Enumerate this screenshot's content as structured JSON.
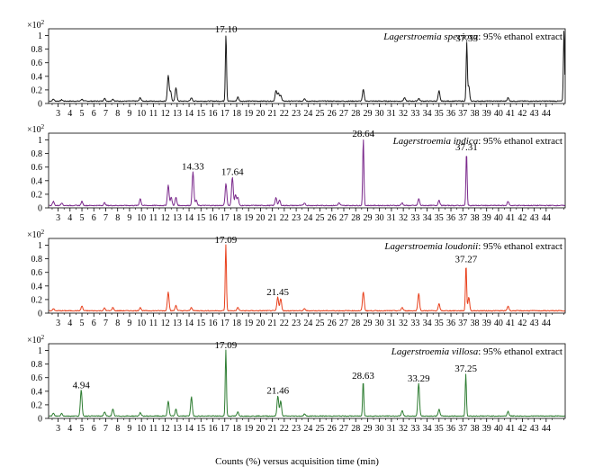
{
  "figure": {
    "xlabel": "Counts (%) versus acquisition time (min)",
    "y_multiplier": "×10",
    "y_multiplier_exp": "2"
  },
  "chart_data": [
    {
      "type": "line",
      "title_species": "Lagerstroemia speciosa",
      "title_suffix": ": 95% ethanol extract",
      "color": "#1a1a1a",
      "xlim": [
        2.2,
        45.6
      ],
      "ylim": [
        0,
        1.1
      ],
      "x_ticks": [
        3,
        4,
        5,
        6,
        7,
        8,
        9,
        10,
        11,
        12,
        13,
        14,
        15,
        16,
        17,
        18,
        19,
        20,
        21,
        22,
        23,
        24,
        25,
        26,
        27,
        28,
        29,
        30,
        31,
        32,
        33,
        34,
        35,
        36,
        37,
        38,
        39,
        40,
        41,
        42,
        43,
        44
      ],
      "y_ticks": [
        0,
        0.2,
        0.4,
        0.6,
        0.8,
        1
      ],
      "y_tick_labels": [
        "0",
        "0.2",
        "0.4",
        "0.6",
        "0.8",
        "1"
      ],
      "peaks": [
        {
          "x": 2.6,
          "y": 0.03
        },
        {
          "x": 3.3,
          "y": 0.02
        },
        {
          "x": 5.0,
          "y": 0.03
        },
        {
          "x": 6.9,
          "y": 0.04
        },
        {
          "x": 7.6,
          "y": 0.03
        },
        {
          "x": 9.9,
          "y": 0.05
        },
        {
          "x": 12.25,
          "y": 0.38
        },
        {
          "x": 12.45,
          "y": 0.14
        },
        {
          "x": 12.9,
          "y": 0.2
        },
        {
          "x": 14.2,
          "y": 0.05
        },
        {
          "x": 17.1,
          "y": 0.98
        },
        {
          "x": 18.1,
          "y": 0.06
        },
        {
          "x": 21.3,
          "y": 0.16
        },
        {
          "x": 21.5,
          "y": 0.12
        },
        {
          "x": 21.7,
          "y": 0.09
        },
        {
          "x": 23.7,
          "y": 0.04
        },
        {
          "x": 28.64,
          "y": 0.17
        },
        {
          "x": 32.1,
          "y": 0.05
        },
        {
          "x": 33.3,
          "y": 0.04
        },
        {
          "x": 35.0,
          "y": 0.15
        },
        {
          "x": 37.33,
          "y": 0.85
        },
        {
          "x": 37.5,
          "y": 0.22
        },
        {
          "x": 40.8,
          "y": 0.05
        },
        {
          "x": 45.5,
          "y": 1.05
        }
      ],
      "labels": [
        {
          "x": 17.1,
          "text": "17.10"
        },
        {
          "x": 37.33,
          "text": "37.33"
        }
      ]
    },
    {
      "type": "line",
      "title_species": "Lagerstroemia indica",
      "title_suffix": ": 95% ethanol extract",
      "color": "#7b2a8c",
      "xlim": [
        2.2,
        45.6
      ],
      "ylim": [
        0,
        1.1
      ],
      "x_ticks": [
        3,
        4,
        5,
        6,
        7,
        8,
        9,
        10,
        11,
        12,
        13,
        14,
        15,
        16,
        17,
        18,
        19,
        20,
        21,
        22,
        23,
        24,
        25,
        26,
        27,
        28,
        29,
        30,
        31,
        32,
        33,
        34,
        35,
        36,
        37,
        38,
        39,
        40,
        41,
        42,
        43,
        44
      ],
      "y_ticks": [
        0,
        0.2,
        0.4,
        0.6,
        0.8,
        1
      ],
      "y_tick_labels": [
        "0",
        "0.2",
        "0.4",
        "0.6",
        "0.8",
        "1"
      ],
      "peaks": [
        {
          "x": 2.6,
          "y": 0.06
        },
        {
          "x": 3.3,
          "y": 0.04
        },
        {
          "x": 5.0,
          "y": 0.06
        },
        {
          "x": 6.9,
          "y": 0.04
        },
        {
          "x": 9.9,
          "y": 0.1
        },
        {
          "x": 12.25,
          "y": 0.3
        },
        {
          "x": 12.5,
          "y": 0.12
        },
        {
          "x": 12.9,
          "y": 0.12
        },
        {
          "x": 14.33,
          "y": 0.5
        },
        {
          "x": 14.6,
          "y": 0.08
        },
        {
          "x": 17.1,
          "y": 0.32
        },
        {
          "x": 17.64,
          "y": 0.42
        },
        {
          "x": 17.9,
          "y": 0.16
        },
        {
          "x": 18.1,
          "y": 0.12
        },
        {
          "x": 21.3,
          "y": 0.12
        },
        {
          "x": 21.6,
          "y": 0.08
        },
        {
          "x": 23.7,
          "y": 0.04
        },
        {
          "x": 26.6,
          "y": 0.04
        },
        {
          "x": 28.64,
          "y": 0.98
        },
        {
          "x": 31.9,
          "y": 0.04
        },
        {
          "x": 33.3,
          "y": 0.1
        },
        {
          "x": 35.0,
          "y": 0.08
        },
        {
          "x": 37.31,
          "y": 0.78
        },
        {
          "x": 40.8,
          "y": 0.06
        }
      ],
      "labels": [
        {
          "x": 14.33,
          "text": "14.33"
        },
        {
          "x": 17.64,
          "text": "17.64"
        },
        {
          "x": 28.64,
          "text": "28.64"
        },
        {
          "x": 37.31,
          "text": "37.31"
        }
      ]
    },
    {
      "type": "line",
      "title_species": "Lagerstroemia loudonii",
      "title_suffix": ": 95% ethanol extract",
      "color": "#e8401c",
      "xlim": [
        2.2,
        45.6
      ],
      "ylim": [
        0,
        1.1
      ],
      "x_ticks": [
        3,
        4,
        5,
        6,
        7,
        8,
        9,
        10,
        11,
        12,
        13,
        14,
        15,
        16,
        17,
        18,
        19,
        20,
        21,
        22,
        23,
        24,
        25,
        26,
        27,
        28,
        29,
        30,
        31,
        32,
        33,
        34,
        35,
        36,
        37,
        38,
        39,
        40,
        41,
        42,
        43,
        44
      ],
      "y_ticks": [
        0,
        0.2,
        0.4,
        0.6,
        0.8,
        1
      ],
      "y_tick_labels": [
        "0",
        "0.2",
        "0.4",
        "0.6",
        "0.8",
        "1"
      ],
      "peaks": [
        {
          "x": 2.6,
          "y": 0.03
        },
        {
          "x": 5.0,
          "y": 0.07
        },
        {
          "x": 6.9,
          "y": 0.04
        },
        {
          "x": 7.6,
          "y": 0.05
        },
        {
          "x": 9.9,
          "y": 0.05
        },
        {
          "x": 12.25,
          "y": 0.28
        },
        {
          "x": 12.9,
          "y": 0.08
        },
        {
          "x": 14.2,
          "y": 0.05
        },
        {
          "x": 17.09,
          "y": 0.97
        },
        {
          "x": 18.1,
          "y": 0.05
        },
        {
          "x": 21.45,
          "y": 0.2
        },
        {
          "x": 21.7,
          "y": 0.18
        },
        {
          "x": 23.7,
          "y": 0.03
        },
        {
          "x": 28.64,
          "y": 0.28
        },
        {
          "x": 31.9,
          "y": 0.05
        },
        {
          "x": 33.29,
          "y": 0.26
        },
        {
          "x": 35.0,
          "y": 0.1
        },
        {
          "x": 37.27,
          "y": 0.68
        },
        {
          "x": 37.5,
          "y": 0.2
        },
        {
          "x": 40.8,
          "y": 0.07
        }
      ],
      "labels": [
        {
          "x": 17.09,
          "text": "17.09"
        },
        {
          "x": 21.45,
          "text": "21.45"
        },
        {
          "x": 37.27,
          "text": "37.27"
        }
      ]
    },
    {
      "type": "line",
      "title_species": "Lagerstroemia villosa",
      "title_suffix": ": 95% ethanol extract",
      "color": "#2e7d32",
      "xlim": [
        2.2,
        45.6
      ],
      "ylim": [
        0,
        1.1
      ],
      "x_ticks": [
        3,
        4,
        5,
        6,
        7,
        8,
        9,
        10,
        11,
        12,
        13,
        14,
        15,
        16,
        17,
        18,
        19,
        20,
        21,
        22,
        23,
        24,
        25,
        26,
        27,
        28,
        29,
        30,
        31,
        32,
        33,
        34,
        35,
        36,
        37,
        38,
        39,
        40,
        41,
        42,
        43,
        44
      ],
      "y_ticks": [
        0,
        0.2,
        0.4,
        0.6,
        0.8,
        1
      ],
      "y_tick_labels": [
        "0",
        "0.2",
        "0.4",
        "0.6",
        "0.8",
        "1"
      ],
      "peaks": [
        {
          "x": 2.6,
          "y": 0.04
        },
        {
          "x": 3.3,
          "y": 0.04
        },
        {
          "x": 4.94,
          "y": 0.38
        },
        {
          "x": 6.9,
          "y": 0.06
        },
        {
          "x": 7.6,
          "y": 0.1
        },
        {
          "x": 9.9,
          "y": 0.05
        },
        {
          "x": 12.25,
          "y": 0.22
        },
        {
          "x": 12.9,
          "y": 0.1
        },
        {
          "x": 14.2,
          "y": 0.28
        },
        {
          "x": 17.09,
          "y": 0.97
        },
        {
          "x": 18.1,
          "y": 0.06
        },
        {
          "x": 21.46,
          "y": 0.3
        },
        {
          "x": 21.7,
          "y": 0.22
        },
        {
          "x": 23.7,
          "y": 0.03
        },
        {
          "x": 28.63,
          "y": 0.52
        },
        {
          "x": 31.9,
          "y": 0.08
        },
        {
          "x": 33.29,
          "y": 0.48
        },
        {
          "x": 35.0,
          "y": 0.1
        },
        {
          "x": 37.25,
          "y": 0.62
        },
        {
          "x": 40.8,
          "y": 0.07
        }
      ],
      "labels": [
        {
          "x": 4.94,
          "text": "4.94"
        },
        {
          "x": 17.09,
          "text": "17.09"
        },
        {
          "x": 21.46,
          "text": "21.46"
        },
        {
          "x": 28.63,
          "text": "28.63"
        },
        {
          "x": 33.29,
          "text": "33.29"
        },
        {
          "x": 37.25,
          "text": "37.25"
        }
      ]
    }
  ]
}
